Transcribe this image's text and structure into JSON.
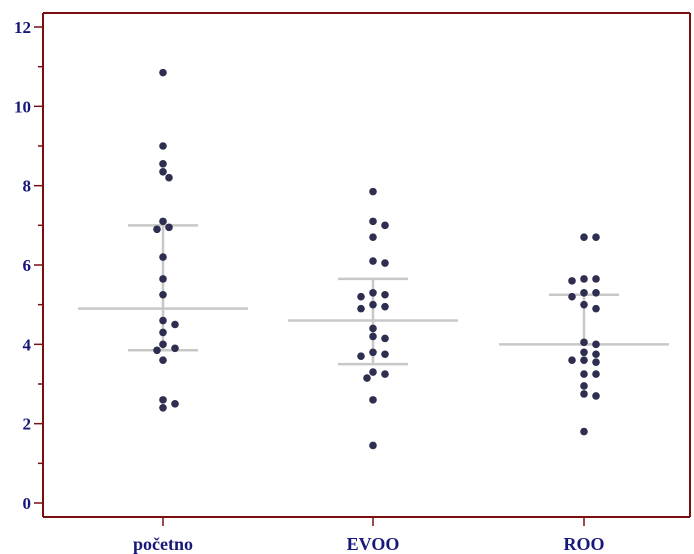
{
  "chart_data": {
    "type": "scatter",
    "title": "",
    "xlabel": "",
    "ylabel": "",
    "ylim": [
      0,
      12
    ],
    "yticks": [
      0,
      2,
      4,
      6,
      8,
      10,
      12
    ],
    "categories": [
      "početno",
      "EVOO",
      "ROO"
    ],
    "grid": false,
    "legend": "none",
    "colors": {
      "axis": "#7a0f10",
      "label": "#17177a",
      "point": "#2e2e50",
      "summary": "#c8c8c8"
    },
    "series": [
      {
        "category": "početno",
        "values": [
          10.85,
          9.0,
          8.55,
          8.35,
          8.2,
          7.1,
          6.95,
          6.9,
          6.2,
          5.65,
          5.25,
          4.6,
          4.5,
          4.3,
          4.0,
          3.9,
          3.85,
          3.6,
          2.6,
          2.5,
          2.4
        ],
        "mean": 4.9,
        "upper": 7.0,
        "lower": 3.85
      },
      {
        "category": "EVOO",
        "values": [
          7.85,
          7.1,
          7.0,
          6.7,
          6.1,
          6.05,
          5.3,
          5.25,
          5.2,
          5.0,
          4.95,
          4.9,
          4.4,
          4.2,
          4.15,
          3.8,
          3.75,
          3.7,
          3.3,
          3.25,
          3.15,
          2.6,
          1.45
        ],
        "mean": 4.6,
        "upper": 5.65,
        "lower": 3.5
      },
      {
        "category": "ROO",
        "values": [
          6.7,
          6.7,
          5.65,
          5.65,
          5.6,
          5.3,
          5.3,
          5.2,
          5.0,
          4.9,
          4.05,
          4.0,
          3.8,
          3.75,
          3.6,
          3.6,
          3.55,
          3.25,
          3.25,
          2.95,
          2.75,
          2.7,
          1.8
        ],
        "mean": 4.0,
        "upper": 5.25,
        "lower": null
      }
    ]
  }
}
